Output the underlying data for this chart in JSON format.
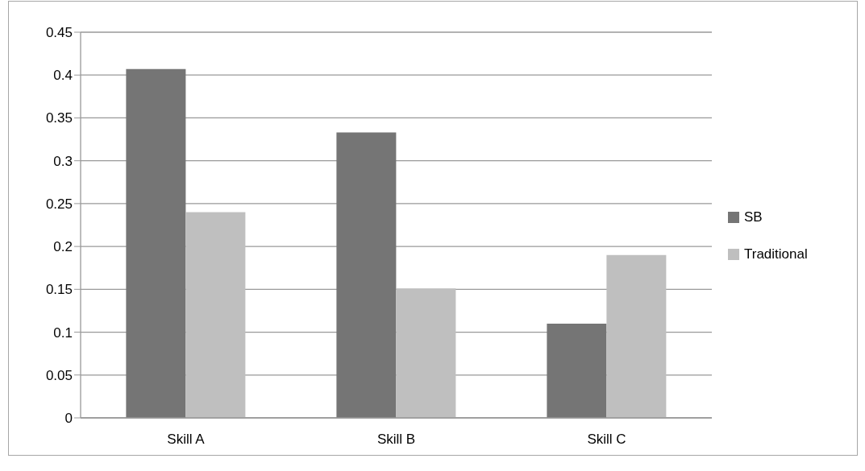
{
  "chart_data": {
    "type": "bar",
    "categories": [
      "Skill A",
      "Skill B",
      "Skill C"
    ],
    "series": [
      {
        "name": "SB",
        "color": "#757575",
        "values": [
          0.407,
          0.333,
          0.11
        ]
      },
      {
        "name": "Traditional",
        "color": "#bfbfbf",
        "values": [
          0.24,
          0.151,
          0.19
        ]
      }
    ],
    "ylim": [
      0,
      0.45
    ],
    "yticks": [
      0,
      0.05,
      0.1,
      0.15,
      0.2,
      0.25,
      0.3,
      0.35,
      0.4,
      0.45
    ],
    "grid": "y",
    "legend": "right"
  }
}
